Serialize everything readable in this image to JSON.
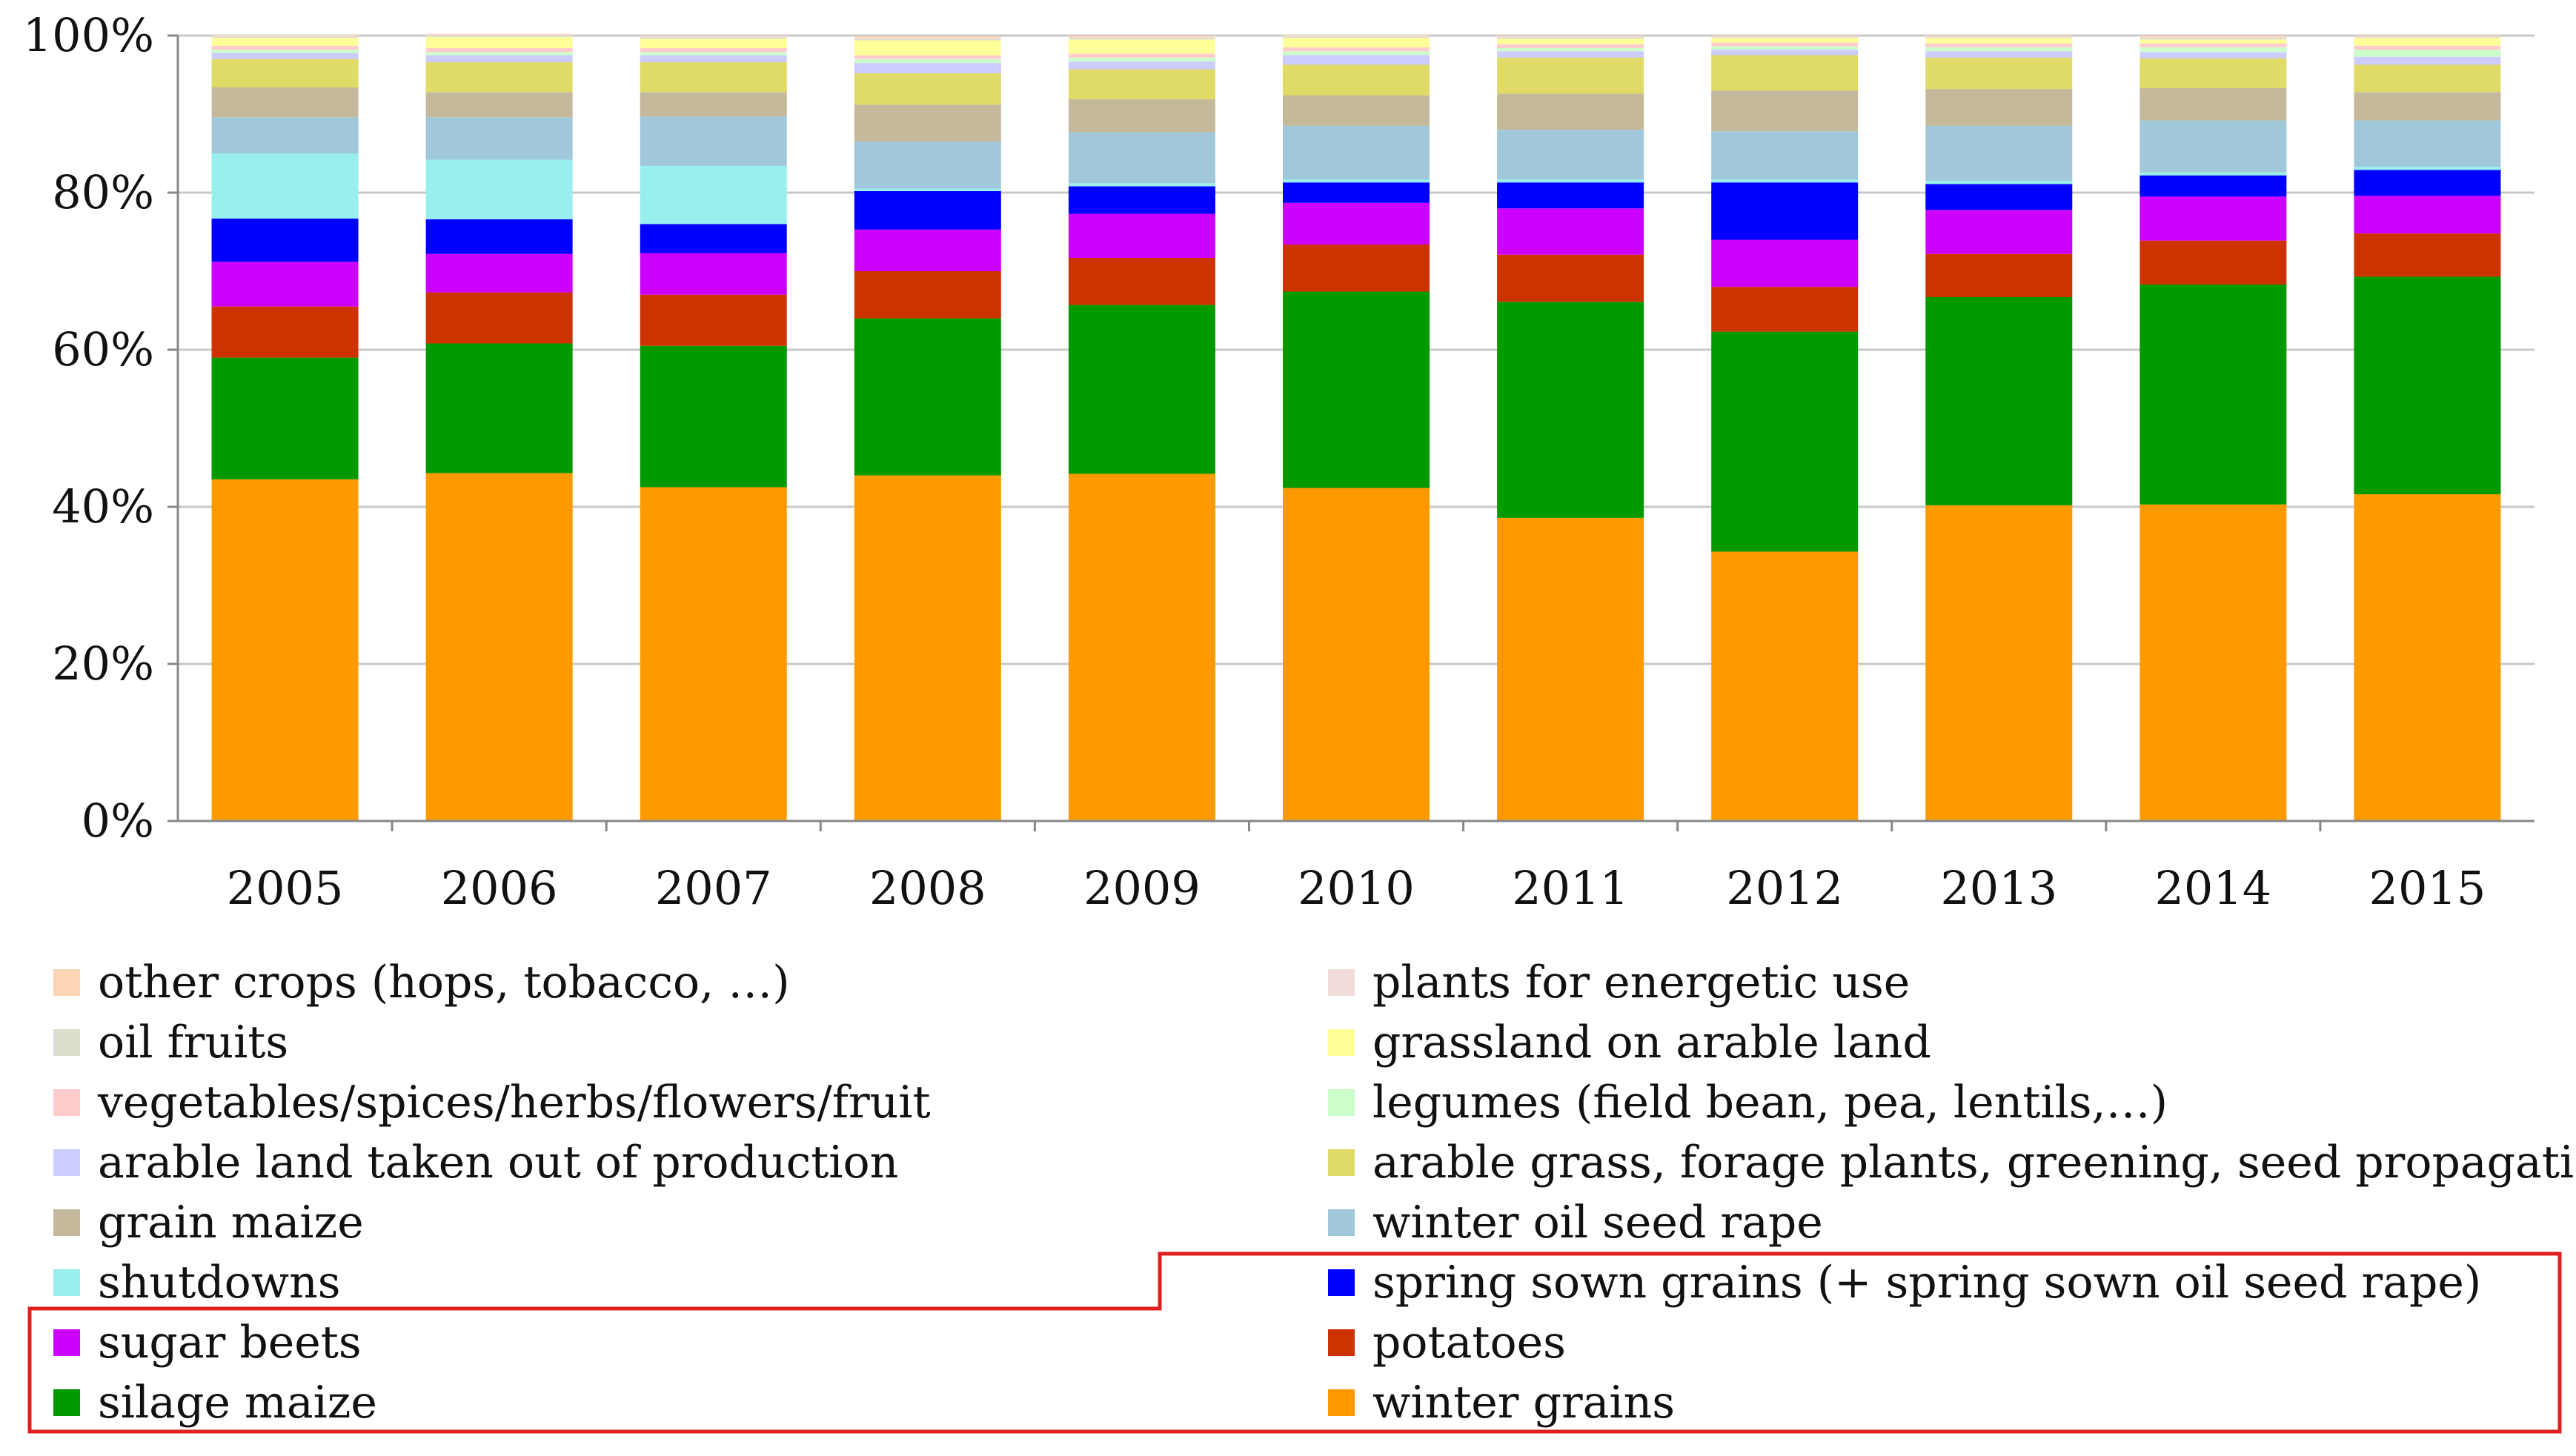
{
  "chart_data": {
    "type": "bar",
    "stacked": true,
    "percent": true,
    "title": "",
    "xlabel": "",
    "ylabel": "",
    "ylim": [
      0,
      100
    ],
    "yticks": [
      "0%",
      "20%",
      "40%",
      "60%",
      "80%",
      "100%"
    ],
    "categories": [
      "2005",
      "2006",
      "2007",
      "2008",
      "2009",
      "2010",
      "2011",
      "2012",
      "2013",
      "2014",
      "2015"
    ],
    "series": [
      {
        "name": "winter grains",
        "color": "#FF9900",
        "values": [
          43.5,
          44.3,
          42.5,
          44,
          44.2,
          42.4,
          38.6,
          34.3,
          40.2,
          40.3,
          41.6
        ]
      },
      {
        "name": "silage maize",
        "color": "#009900",
        "values": [
          15.5,
          16.5,
          18,
          20,
          21.5,
          25,
          27.5,
          28,
          26.5,
          28,
          27.7
        ]
      },
      {
        "name": "potatoes",
        "color": "#CC3300",
        "values": [
          6.5,
          6.5,
          6.5,
          6,
          6,
          6,
          6,
          5.7,
          5.5,
          5.6,
          5.5
        ]
      },
      {
        "name": "sugar beets",
        "color": "#CC00FF",
        "values": [
          5.7,
          4.9,
          5.3,
          5.3,
          5.6,
          5.3,
          5.9,
          6,
          5.6,
          5.6,
          4.8
        ]
      },
      {
        "name": "spring sown grains (+ spring sown oil seed rape)",
        "color": "#0000FF",
        "values": [
          5.5,
          4.4,
          3.7,
          4.9,
          3.5,
          2.6,
          3.3,
          7.3,
          3.3,
          2.7,
          3.3
        ]
      },
      {
        "name": "shutdowns",
        "color": "#99EEEE",
        "values": [
          8.3,
          7.6,
          7.4,
          0.3,
          0.4,
          0.4,
          0.4,
          0.4,
          0.4,
          0.4,
          0.4
        ]
      },
      {
        "name": "winter oil seed rape",
        "color": "#A0C8DA",
        "values": [
          4.6,
          5.4,
          6.3,
          6,
          6.5,
          6.8,
          6.3,
          6.1,
          7,
          6.6,
          5.9
        ]
      },
      {
        "name": "grain maize",
        "color": "#C4B99A",
        "values": [
          3.8,
          3.2,
          3.1,
          4.7,
          4.2,
          3.9,
          4.6,
          5.2,
          4.7,
          4.1,
          3.6
        ]
      },
      {
        "name": "arable grass, forage plants, greening, seed propagation",
        "color": "#E0DA66",
        "values": [
          3.6,
          3.8,
          3.8,
          4,
          3.8,
          3.9,
          4.6,
          4.5,
          4,
          3.8,
          3.5
        ]
      },
      {
        "name": "arable land taken out of production",
        "color": "#CCCCFF",
        "values": [
          0.8,
          0.9,
          0.9,
          1.3,
          1,
          1.2,
          0.8,
          0.7,
          0.8,
          0.8,
          1
        ]
      },
      {
        "name": "legumes (field bean, pea, lentils,…)",
        "color": "#CCFFCC",
        "values": [
          0.4,
          0.4,
          0.4,
          0.5,
          0.5,
          0.5,
          0.4,
          0.4,
          0.5,
          0.6,
          0.9
        ]
      },
      {
        "name": "vegetables/spices/herbs/flowers/fruit",
        "color": "#FFCCCC",
        "values": [
          0.5,
          0.5,
          0.5,
          0.5,
          0.5,
          0.5,
          0.5,
          0.5,
          0.5,
          0.5,
          0.5
        ]
      },
      {
        "name": "grassland on arable land",
        "color": "#FFFF99",
        "values": [
          1,
          1.4,
          1.2,
          1.9,
          1.8,
          1.2,
          0.7,
          0.6,
          0.7,
          0.5,
          1
        ]
      },
      {
        "name": "oil fruits",
        "color": "#DDDDCC",
        "values": [
          0.2,
          0.2,
          0.2,
          0.2,
          0.2,
          0.2,
          0.2,
          0.1,
          0.1,
          0.2,
          0.1
        ]
      },
      {
        "name": "plants for energetic use",
        "color": "#F2DCDB",
        "values": [
          0.1,
          0.1,
          0.1,
          0.1,
          0.1,
          0.1,
          0.1,
          0.1,
          0.1,
          0.1,
          0.1
        ]
      },
      {
        "name": "other crops (hops, tobacco, …)",
        "color": "#FCD5B4",
        "values": [
          0.1,
          0.1,
          0.1,
          0.2,
          0.2,
          0.1,
          0.1,
          0.1,
          0.1,
          0.2,
          0.1
        ]
      }
    ],
    "legend": {
      "position": "bottom",
      "columns": 2,
      "entries": [
        [
          "other crops (hops, tobacco, …)",
          "plants for energetic use"
        ],
        [
          "oil fruits",
          "grassland on arable land"
        ],
        [
          "vegetables/spices/herbs/flowers/fruit",
          "legumes (field bean, pea, lentils,…)"
        ],
        [
          "arable land taken out of production",
          "arable grass, forage plants, greening, seed propagation"
        ],
        [
          "grain maize",
          "winter oil seed rape"
        ],
        [
          "shutdowns",
          "spring sown grains (+ spring sown oil seed rape)"
        ],
        [
          "sugar beets",
          "potatoes"
        ],
        [
          "silage maize",
          "winter grains"
        ]
      ],
      "highlight_color": "#E02020"
    }
  }
}
